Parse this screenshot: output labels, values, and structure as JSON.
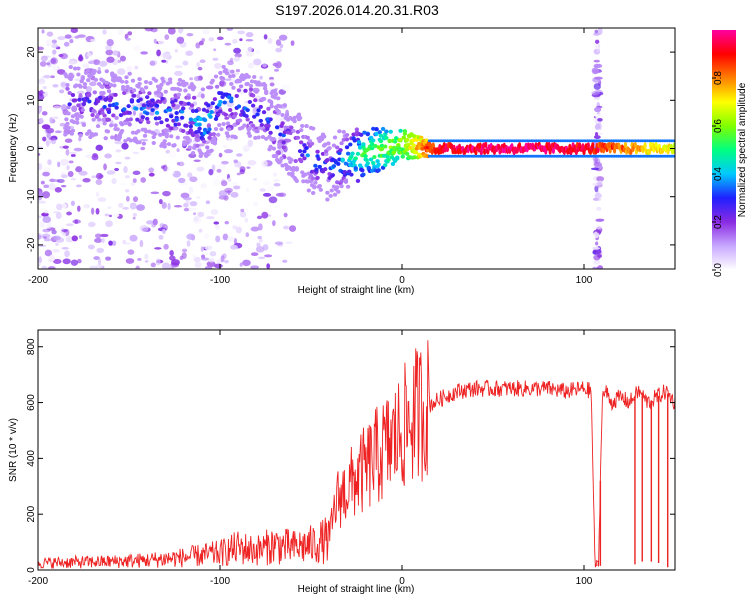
{
  "figure_title": "S197.2026.014.20.31.R03",
  "colorbar": {
    "label": "Normalized spectral amplitude",
    "ticks": [
      "0.0",
      "0.2",
      "0.4",
      "0.6",
      "0.8"
    ],
    "tick_values": [
      0.0,
      0.2,
      0.4,
      0.6,
      0.8
    ],
    "range": [
      0,
      1
    ],
    "colormap": [
      "#ffffff",
      "#c8a8ff",
      "#8a2be2",
      "#2020ff",
      "#00c8ff",
      "#00ff80",
      "#80ff00",
      "#ffff00",
      "#ff8000",
      "#ff0000",
      "#ff00a0"
    ]
  },
  "chart_data": [
    {
      "type": "heatmap",
      "title": "S197.2026.014.20.31.R03",
      "xlabel": "Height of straight line (km)",
      "ylabel": "Frequency (Hz)",
      "xlim": [
        -200,
        150
      ],
      "ylim": [
        -25,
        25
      ],
      "xticks": [
        -200,
        -100,
        0,
        100
      ],
      "yticks": [
        -20,
        -10,
        0,
        10,
        20
      ],
      "xtick_labels": [
        "-200",
        "-100",
        "0",
        "100"
      ],
      "ytick_labels": [
        "-20",
        "-10",
        "0",
        "10",
        "20"
      ],
      "ridge": [
        {
          "x": -185,
          "f": 10,
          "a": 0.25
        },
        {
          "x": -160,
          "f": 9,
          "a": 0.3
        },
        {
          "x": -140,
          "f": 8,
          "a": 0.35
        },
        {
          "x": -120,
          "f": 7,
          "a": 0.35
        },
        {
          "x": -107,
          "f": 5,
          "a": 0.45
        },
        {
          "x": -100,
          "f": 10,
          "a": 0.35
        },
        {
          "x": -85,
          "f": 9,
          "a": 0.35
        },
        {
          "x": -70,
          "f": 5,
          "a": 0.3
        },
        {
          "x": -60,
          "f": 1,
          "a": 0.3
        },
        {
          "x": -50,
          "f": -2,
          "a": 0.35
        },
        {
          "x": -40,
          "f": -4,
          "a": 0.3
        },
        {
          "x": -30,
          "f": -2,
          "a": 0.45
        },
        {
          "x": -20,
          "f": -1,
          "a": 0.55
        },
        {
          "x": -10,
          "f": 0,
          "a": 0.6
        },
        {
          "x": 0,
          "f": 1,
          "a": 0.65
        },
        {
          "x": 10,
          "f": 0.3,
          "a": 0.8
        },
        {
          "x": 20,
          "f": 0,
          "a": 0.95
        },
        {
          "x": 60,
          "f": 0,
          "a": 1.0
        },
        {
          "x": 100,
          "f": 0,
          "a": 0.95
        },
        {
          "x": 118,
          "f": 0,
          "a": 0.85
        },
        {
          "x": 150,
          "f": 0,
          "a": 0.7
        }
      ],
      "noise_features": [
        {
          "x_range": [
            -200,
            -100
          ],
          "f_range": [
            -25,
            25
          ],
          "description": "scattered low-amplitude noise"
        },
        {
          "x_range": [
            106,
            109
          ],
          "f_range": [
            -25,
            25
          ],
          "description": "vertical broadband spike"
        }
      ]
    },
    {
      "type": "line",
      "xlabel": "Height of straight line (km)",
      "ylabel": "SNR (10 * v/v)",
      "xlim": [
        -200,
        150
      ],
      "ylim": [
        0,
        860
      ],
      "xticks": [
        -200,
        -100,
        0,
        100
      ],
      "yticks": [
        0,
        200,
        400,
        600,
        800
      ],
      "xtick_labels": [
        "-200",
        "-100",
        "0",
        "100"
      ],
      "ytick_labels": [
        "0",
        "200",
        "400",
        "600",
        "800"
      ],
      "series": [
        {
          "name": "SNR",
          "color": "#ee2222",
          "x": [
            -200,
            -180,
            -160,
            -140,
            -120,
            -100,
            -90,
            -80,
            -70,
            -60,
            -50,
            -40,
            -36,
            -30,
            -25,
            -20,
            -15,
            -10,
            -5,
            0,
            5,
            10,
            15,
            20,
            30,
            40,
            50,
            60,
            70,
            80,
            90,
            100,
            104,
            106,
            108,
            110,
            112,
            115,
            120,
            125,
            130,
            135,
            140,
            145,
            150
          ],
          "y": [
            25,
            28,
            30,
            35,
            45,
            60,
            80,
            70,
            90,
            80,
            90,
            110,
            250,
            290,
            330,
            360,
            400,
            430,
            460,
            500,
            540,
            570,
            590,
            610,
            640,
            650,
            650,
            650,
            650,
            650,
            640,
            650,
            640,
            20,
            20,
            620,
            640,
            600,
            620,
            600,
            640,
            600,
            620,
            640,
            600
          ],
          "dropouts": [
            {
              "x": 107,
              "y": 15
            },
            {
              "x": 109,
              "y": 15
            },
            {
              "x": 128,
              "y": 20
            },
            {
              "x": 132,
              "y": 30
            },
            {
              "x": 137,
              "y": 30
            },
            {
              "x": 141,
              "y": 25
            },
            {
              "x": 146,
              "y": 10
            }
          ]
        }
      ]
    }
  ]
}
